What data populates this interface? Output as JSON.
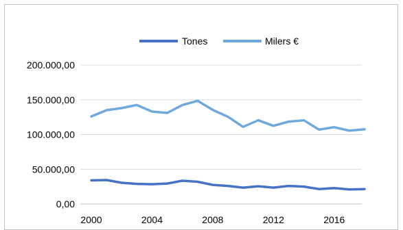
{
  "chart_data": {
    "type": "line",
    "title": "",
    "xlabel": "",
    "ylabel": "",
    "x": [
      2000,
      2001,
      2002,
      2003,
      2004,
      2005,
      2006,
      2007,
      2008,
      2009,
      2010,
      2011,
      2012,
      2013,
      2014,
      2015,
      2016,
      2017,
      2018
    ],
    "x_ticks": [
      "2000",
      "2004",
      "2008",
      "2012",
      "2016"
    ],
    "y_ticks": [
      "200.000,00",
      "150.000,00",
      "100.000,00",
      "50.000,00",
      "0,00"
    ],
    "y_tick_values": [
      200000,
      150000,
      100000,
      50000,
      0
    ],
    "ylim": [
      0,
      200000
    ],
    "grid": "horizontal",
    "legend_position": "top",
    "series": [
      {
        "name": "Tones",
        "color": "#4472c4",
        "values": [
          34000,
          34500,
          30500,
          29000,
          28500,
          29500,
          33500,
          32000,
          27500,
          26000,
          23500,
          25500,
          23500,
          26000,
          25000,
          21500,
          23000,
          21000,
          21500
        ]
      },
      {
        "name": "Milers €",
        "color": "#6fa8dc",
        "values": [
          126000,
          135000,
          138000,
          142500,
          133000,
          131000,
          142500,
          148500,
          135500,
          125500,
          111000,
          120500,
          112500,
          118500,
          120500,
          107000,
          110500,
          105500,
          107500
        ]
      }
    ]
  }
}
